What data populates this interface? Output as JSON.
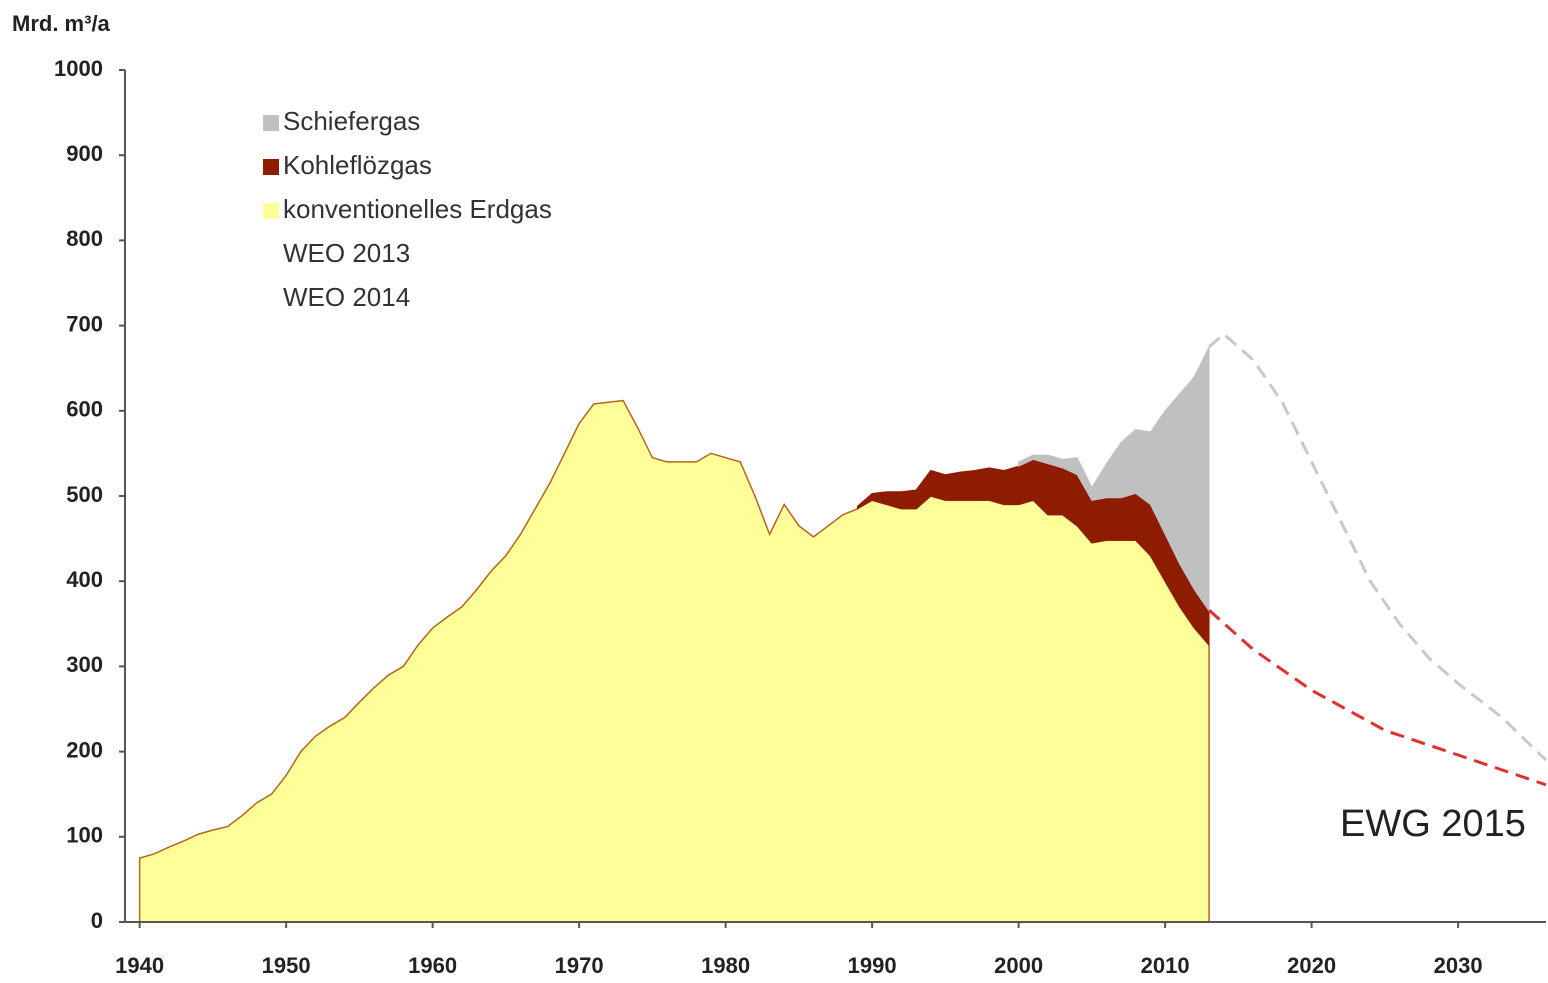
{
  "chart_data": {
    "type": "area",
    "y_axis_label": "Mrd. m³/a",
    "annotation": "EWG 2015",
    "xlim": [
      1939,
      2036
    ],
    "xticks": [
      1940,
      1950,
      1960,
      1970,
      1980,
      1990,
      2000,
      2010,
      2020,
      2030
    ],
    "ylim": [
      0,
      1000
    ],
    "yticks": [
      0,
      100,
      200,
      300,
      400,
      500,
      600,
      700,
      800,
      900,
      1000
    ],
    "x": [
      1940,
      1941,
      1942,
      1943,
      1944,
      1945,
      1946,
      1947,
      1948,
      1949,
      1950,
      1951,
      1952,
      1953,
      1954,
      1955,
      1956,
      1957,
      1958,
      1959,
      1960,
      1961,
      1962,
      1963,
      1964,
      1965,
      1966,
      1967,
      1968,
      1969,
      1970,
      1971,
      1972,
      1973,
      1974,
      1975,
      1976,
      1977,
      1978,
      1979,
      1980,
      1981,
      1982,
      1983,
      1984,
      1985,
      1986,
      1987,
      1988,
      1989,
      1990,
      1991,
      1992,
      1993,
      1994,
      1995,
      1996,
      1997,
      1998,
      1999,
      2000,
      2001,
      2002,
      2003,
      2004,
      2005,
      2006,
      2007,
      2008,
      2009,
      2010,
      2011,
      2012,
      2013
    ],
    "series": [
      {
        "name": "konventionelles Erdgas",
        "kind": "area",
        "color": "#ffff99",
        "values": [
          75,
          80,
          88,
          95,
          103,
          108,
          112,
          125,
          140,
          150,
          172,
          200,
          218,
          230,
          240,
          258,
          275,
          290,
          300,
          325,
          345,
          358,
          370,
          390,
          412,
          430,
          455,
          485,
          515,
          550,
          585,
          608,
          610,
          612,
          580,
          545,
          540,
          540,
          540,
          550,
          545,
          540,
          500,
          455,
          490,
          465,
          452,
          465,
          478,
          485,
          495,
          490,
          485,
          485,
          500,
          495,
          495,
          495,
          495,
          490,
          490,
          495,
          478,
          478,
          465,
          445,
          448,
          448,
          448,
          430,
          400,
          370,
          345,
          325
        ]
      },
      {
        "name": "Kohleflözgas",
        "kind": "area",
        "color": "#8e1c00",
        "values": [
          null,
          null,
          null,
          null,
          null,
          null,
          null,
          null,
          null,
          null,
          null,
          null,
          null,
          null,
          null,
          null,
          null,
          null,
          null,
          null,
          null,
          null,
          null,
          null,
          null,
          null,
          null,
          null,
          null,
          null,
          null,
          null,
          null,
          null,
          null,
          null,
          null,
          null,
          null,
          null,
          null,
          null,
          null,
          null,
          null,
          null,
          null,
          null,
          null,
          3,
          8,
          15,
          20,
          22,
          30,
          30,
          33,
          35,
          38,
          40,
          45,
          48,
          60,
          55,
          60,
          50,
          50,
          50,
          55,
          60,
          55,
          50,
          45,
          40
        ]
      },
      {
        "name": "Schiefergas",
        "kind": "area",
        "color": "#c0c0c0",
        "values": [
          null,
          null,
          null,
          null,
          null,
          null,
          null,
          null,
          null,
          null,
          null,
          null,
          null,
          null,
          null,
          null,
          null,
          null,
          null,
          null,
          null,
          null,
          null,
          null,
          null,
          null,
          null,
          null,
          null,
          null,
          null,
          null,
          null,
          null,
          null,
          null,
          null,
          null,
          null,
          null,
          null,
          null,
          null,
          null,
          null,
          null,
          null,
          null,
          null,
          null,
          null,
          null,
          null,
          null,
          null,
          null,
          null,
          null,
          null,
          null,
          5,
          5,
          10,
          10,
          20,
          15,
          40,
          65,
          75,
          85,
          145,
          200,
          250,
          310
        ]
      },
      {
        "name": "WEO 2013",
        "kind": "line",
        "color": "#c8c8c8",
        "x": [
          2013,
          2014,
          2016,
          2018,
          2020,
          2022,
          2024,
          2026,
          2028,
          2030,
          2033,
          2036
        ],
        "values": [
          675,
          690,
          660,
          610,
          540,
          470,
          400,
          350,
          310,
          280,
          240,
          190
        ]
      },
      {
        "name": "WEO 2014",
        "kind": "line",
        "color": "#e03030",
        "x": [
          2013,
          2016,
          2020,
          2025,
          2030,
          2036
        ],
        "values": [
          366,
          320,
          272,
          225,
          196,
          161
        ]
      }
    ],
    "legend_order": [
      2,
      1,
      0,
      3,
      4
    ]
  }
}
